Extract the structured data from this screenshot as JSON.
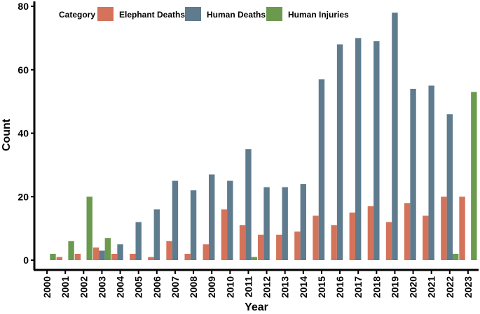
{
  "chart_data": {
    "type": "bar",
    "title": "",
    "xlabel": "Year",
    "ylabel": "Count",
    "ylim": [
      0,
      80
    ],
    "yticks": [
      0,
      20,
      40,
      60,
      80
    ],
    "grid": false,
    "legend": {
      "title": "Category",
      "position": "top-left"
    },
    "categories": [
      "2000",
      "2001",
      "2002",
      "2003",
      "2004",
      "2005",
      "2006",
      "2007",
      "2008",
      "2009",
      "2010",
      "2011",
      "2012",
      "2013",
      "2014",
      "2015",
      "2016",
      "2017",
      "2018",
      "2019",
      "2020",
      "2021",
      "2022",
      "2023"
    ],
    "series": [
      {
        "name": "Elephant Deaths",
        "color": "#d4735a",
        "values": [
          null,
          1,
          2,
          4,
          2,
          2,
          1,
          6,
          2,
          5,
          16,
          11,
          8,
          8,
          9,
          14,
          11,
          15,
          17,
          12,
          18,
          14,
          20,
          20
        ]
      },
      {
        "name": "Human Deaths",
        "color": "#5f7b8e",
        "values": [
          null,
          null,
          null,
          3,
          5,
          12,
          16,
          25,
          22,
          27,
          25,
          35,
          23,
          23,
          24,
          57,
          68,
          70,
          69,
          78,
          54,
          55,
          46,
          null
        ]
      },
      {
        "name": "Human Injuries",
        "color": "#6b9a4e",
        "values": [
          2,
          6,
          20,
          7,
          null,
          null,
          null,
          null,
          null,
          null,
          null,
          1,
          null,
          null,
          null,
          null,
          null,
          null,
          null,
          null,
          null,
          null,
          2,
          53
        ]
      }
    ]
  }
}
